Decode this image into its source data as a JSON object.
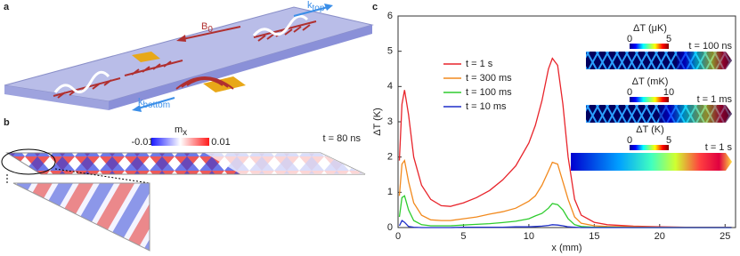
{
  "panel_labels": {
    "a": "a",
    "b": "b",
    "c": "c"
  },
  "panel_a": {
    "field_label": "B",
    "field_sub": "0",
    "k_top_label": "k",
    "k_top_sub": "top",
    "k_bottom_label": "k",
    "k_bottom_sub": "bottom"
  },
  "panel_b": {
    "m_label": "m",
    "m_sub": "x",
    "colorbar_min": "-0.01",
    "colorbar_max": "0.01",
    "time": "t = 80 ns"
  },
  "panel_c_insets": [
    {
      "label": "ΔT (μK)",
      "min": 0,
      "max": 5,
      "time": "t = 100 ns"
    },
    {
      "label": "ΔT (mK)",
      "min": 0,
      "max": 10,
      "time": "t = 1 ms"
    },
    {
      "label": "ΔT (K)",
      "min": 0,
      "max": 5,
      "time": "t = 1 s"
    }
  ],
  "chart_data": {
    "type": "line",
    "x_label": "x (mm)",
    "y_label": "ΔT (K)",
    "x": [
      0.1,
      0.3,
      0.5,
      0.8,
      1.2,
      1.8,
      2.5,
      3.3,
      4,
      5,
      6,
      7,
      8,
      9,
      10,
      10.5,
      11,
      11.5,
      11.8,
      12.2,
      12.6,
      13,
      13.5,
      14,
      15,
      16,
      18,
      20,
      22,
      24,
      25.5
    ],
    "series": [
      {
        "name": "t = 1 s",
        "color": "#e8242b",
        "values": [
          1.9,
          3.5,
          3.9,
          3.2,
          2.0,
          1.2,
          0.8,
          0.62,
          0.6,
          0.7,
          0.85,
          1.05,
          1.35,
          1.75,
          2.4,
          2.9,
          3.6,
          4.5,
          4.8,
          4.6,
          3.5,
          2.0,
          0.8,
          0.35,
          0.15,
          0.08,
          0.04,
          0.02,
          0.01,
          0.01,
          0.01
        ]
      },
      {
        "name": "t = 300 ms",
        "color": "#f28a1e",
        "values": [
          0.9,
          1.8,
          1.9,
          1.3,
          0.7,
          0.35,
          0.22,
          0.2,
          0.2,
          0.25,
          0.3,
          0.38,
          0.45,
          0.55,
          0.75,
          0.9,
          1.2,
          1.6,
          1.85,
          1.8,
          1.3,
          0.8,
          0.3,
          0.12,
          0.05,
          0.03,
          0.02,
          0.01,
          0.01,
          0.01,
          0.01
        ]
      },
      {
        "name": "t = 100 ms",
        "color": "#2ecc2e",
        "values": [
          0.3,
          0.85,
          0.9,
          0.5,
          0.2,
          0.08,
          0.05,
          0.05,
          0.05,
          0.07,
          0.09,
          0.11,
          0.14,
          0.18,
          0.25,
          0.33,
          0.4,
          0.55,
          0.68,
          0.65,
          0.5,
          0.25,
          0.08,
          0.03,
          0.01,
          0.01,
          0,
          0,
          0,
          0,
          0
        ]
      },
      {
        "name": "t = 10 ms",
        "color": "#1f2fc8",
        "values": [
          0.05,
          0.2,
          0.15,
          0.03,
          0.01,
          0,
          0,
          0,
          0,
          0.01,
          0.01,
          0.01,
          0.01,
          0.02,
          0.02,
          0.03,
          0.04,
          0.06,
          0.08,
          0.07,
          0.05,
          0.02,
          0.01,
          0,
          0,
          0,
          0,
          0,
          0,
          0,
          0
        ]
      }
    ],
    "xlim": [
      0,
      25.8
    ],
    "ylim": [
      0,
      6
    ],
    "xticks": [
      0,
      5,
      10,
      15,
      20,
      25
    ],
    "yticks": [
      0,
      1,
      2,
      3,
      4,
      5,
      6
    ],
    "legend": "upper left"
  }
}
